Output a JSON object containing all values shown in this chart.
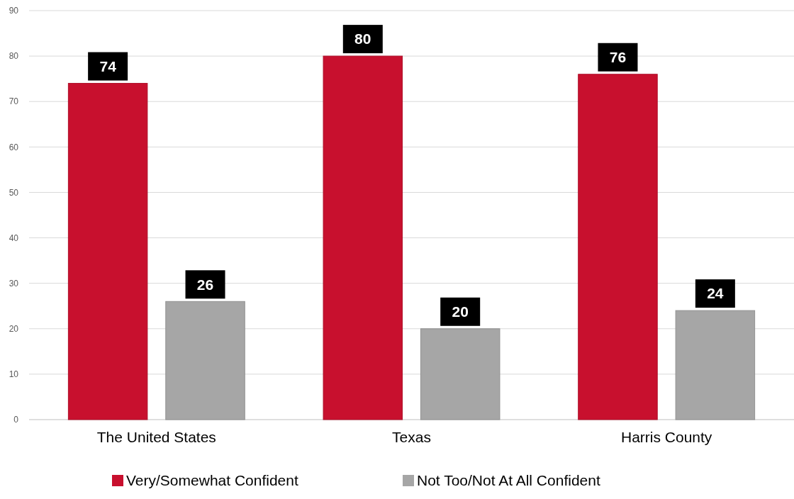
{
  "chart_data": {
    "type": "bar",
    "categories": [
      "The United States",
      "Texas",
      "Harris County"
    ],
    "series": [
      {
        "name": "Very/Somewhat Confident",
        "color": "#c8102e",
        "values": [
          74,
          80,
          76
        ]
      },
      {
        "name": "Not Too/Not At All Confident",
        "color": "#a6a6a6",
        "values": [
          26,
          20,
          24
        ]
      }
    ],
    "ylim": [
      0,
      90
    ],
    "yticks": [
      0,
      10,
      20,
      30,
      40,
      50,
      60,
      70,
      80,
      90
    ],
    "grid": "y",
    "legend": "bottom",
    "data_labels": true
  }
}
